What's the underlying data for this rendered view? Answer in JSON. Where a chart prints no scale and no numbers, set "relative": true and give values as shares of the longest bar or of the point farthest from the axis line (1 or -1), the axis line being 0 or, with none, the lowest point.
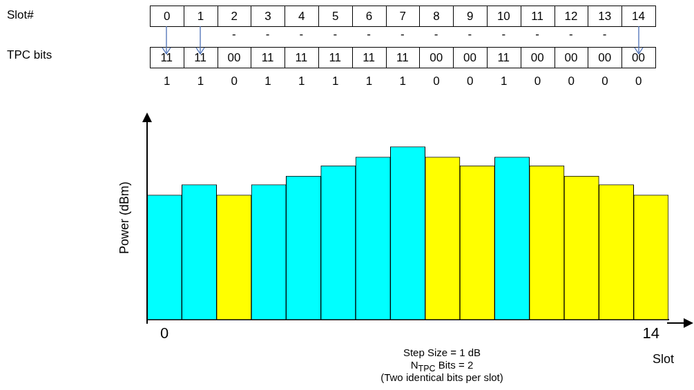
{
  "chart_data": {
    "type": "bar",
    "relative": true,
    "xlabel": "Slot",
    "ylabel": "Power (dBm)",
    "categories": [
      "0",
      null,
      null,
      null,
      null,
      null,
      null,
      null,
      null,
      null,
      null,
      null,
      null,
      null,
      "14"
    ],
    "values": [
      0.72,
      0.78,
      0.72,
      0.78,
      0.83,
      0.89,
      0.94,
      1,
      0.94,
      0.89,
      0.94,
      0.89,
      0.83,
      0.78,
      0.72
    ],
    "colors": [
      "#00ffff",
      "#00ffff",
      "#ffff00",
      "#00ffff",
      "#00ffff",
      "#00ffff",
      "#00ffff",
      "#00ffff",
      "#ffff00",
      "#ffff00",
      "#00ffff",
      "#ffff00",
      "#ffff00",
      "#ffff00",
      "#ffff00"
    ],
    "legend": false,
    "grid": false,
    "annotations": [
      "Slot#",
      "TPC bits",
      "0",
      "1",
      "2",
      "3",
      "4",
      "5",
      "6",
      "7",
      "8",
      "9",
      "10",
      "11",
      "12",
      "13",
      "14",
      "11",
      "11",
      "00",
      "11",
      "11",
      "11",
      "11",
      "11",
      "00",
      "00",
      "11",
      "00",
      "00",
      "00",
      "00",
      "1",
      "1",
      "0",
      "1",
      "1",
      "1",
      "1",
      "1",
      "0",
      "0",
      "1",
      "0",
      "0",
      "0",
      "0",
      "-",
      "-",
      "-",
      "-",
      "-",
      "-",
      "-",
      "-",
      "-",
      "-",
      "-",
      "-",
      "Step Size = 1 dB",
      "N$_{TPC}$ Bits = 2",
      "(Two identical bits per slot)"
    ]
  }
}
